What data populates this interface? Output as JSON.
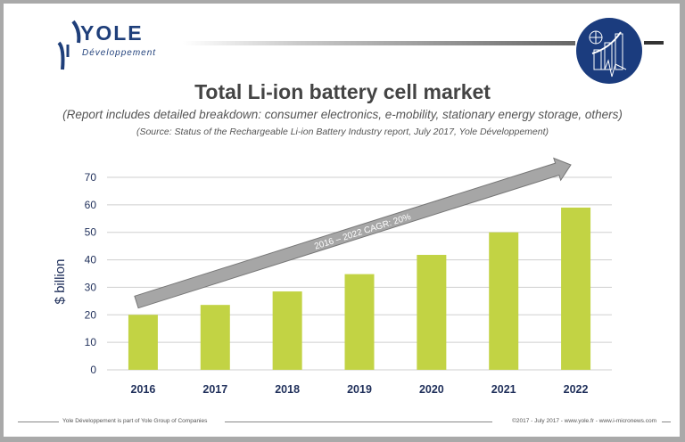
{
  "header": {
    "logo_word": "YOLE",
    "logo_sub": "Développement",
    "title": "Total Li-ion battery cell market",
    "subtitle": "(Report includes detailed breakdown: consumer electronics, e-mobility, stationary energy storage, others)",
    "source": "(Source: Status of the Rechargeable Li-ion Battery Industry report, July 2017, Yole Développement)"
  },
  "footer": {
    "left": "Yole Développement is part of Yole Group of Companies",
    "right": "©2017 - July 2017 - www.yole.fr - www.i-micronews.com"
  },
  "colors": {
    "bar": "#c2d344",
    "axis_text": "#1f2f5a",
    "arrow": "#a6a6a6",
    "brand": "#1b3c7e"
  },
  "chart_data": {
    "type": "bar",
    "title": "Total Li-ion battery cell market",
    "categories": [
      "2016",
      "2017",
      "2018",
      "2019",
      "2020",
      "2021",
      "2022"
    ],
    "values": [
      20,
      23.6,
      28.5,
      34.8,
      41.8,
      50,
      59
    ],
    "ylabel": "$ billion",
    "xlabel": "",
    "ylim": [
      0,
      70
    ],
    "yticks": [
      0,
      10,
      20,
      30,
      40,
      50,
      60,
      70
    ],
    "grid": true,
    "annotation": "2016 – 2022 CAGR: 20%"
  }
}
